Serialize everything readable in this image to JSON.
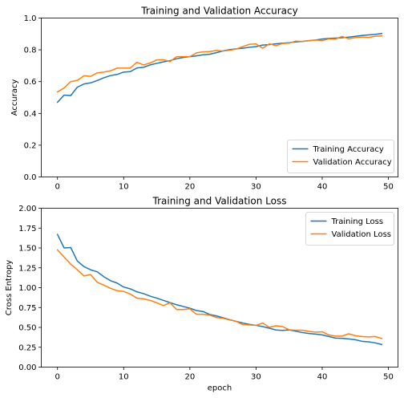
{
  "chart_data": [
    {
      "type": "line",
      "title": "Training and Validation Accuracy",
      "xlabel": "",
      "ylabel": "Accuracy",
      "xlim": [
        -2.45,
        51.45
      ],
      "ylim": [
        0,
        1
      ],
      "xticks": [
        0,
        10,
        20,
        30,
        40,
        50
      ],
      "yticks": [
        0.0,
        0.2,
        0.4,
        0.6,
        0.8,
        1.0
      ],
      "ytick_decimals": 1,
      "grid": false,
      "legend": "lower right",
      "series": [
        {
          "name": "Training Accuracy",
          "color": "#1f77b4",
          "values": [
            0.47,
            0.515,
            0.512,
            0.565,
            0.585,
            0.592,
            0.607,
            0.624,
            0.638,
            0.645,
            0.66,
            0.663,
            0.686,
            0.69,
            0.705,
            0.715,
            0.724,
            0.732,
            0.744,
            0.752,
            0.757,
            0.762,
            0.769,
            0.772,
            0.782,
            0.793,
            0.801,
            0.806,
            0.81,
            0.816,
            0.82,
            0.83,
            0.833,
            0.838,
            0.842,
            0.845,
            0.85,
            0.853,
            0.858,
            0.862,
            0.868,
            0.872,
            0.874,
            0.876,
            0.88,
            0.885,
            0.89,
            0.894,
            0.897,
            0.903
          ]
        },
        {
          "name": "Validation Accuracy",
          "color": "#ff7f0e",
          "values": [
            0.535,
            0.56,
            0.6,
            0.608,
            0.637,
            0.633,
            0.655,
            0.66,
            0.668,
            0.685,
            0.685,
            0.685,
            0.722,
            0.705,
            0.717,
            0.737,
            0.738,
            0.726,
            0.757,
            0.757,
            0.757,
            0.781,
            0.787,
            0.789,
            0.796,
            0.792,
            0.797,
            0.805,
            0.82,
            0.835,
            0.837,
            0.81,
            0.838,
            0.826,
            0.84,
            0.842,
            0.855,
            0.853,
            0.857,
            0.862,
            0.858,
            0.869,
            0.868,
            0.884,
            0.87,
            0.877,
            0.88,
            0.878,
            0.885,
            0.888
          ]
        }
      ]
    },
    {
      "type": "line",
      "title": "Training and Validation Loss",
      "xlabel": "epoch",
      "ylabel": "Cross Entropy",
      "xlim": [
        -2.45,
        51.45
      ],
      "ylim": [
        0,
        2
      ],
      "xticks": [
        0,
        10,
        20,
        30,
        40,
        50
      ],
      "yticks": [
        0.0,
        0.25,
        0.5,
        0.75,
        1.0,
        1.25,
        1.5,
        1.75,
        2.0
      ],
      "ytick_decimals": 2,
      "grid": false,
      "legend": "upper right",
      "series": [
        {
          "name": "Training Loss",
          "color": "#1f77b4",
          "values": [
            1.67,
            1.5,
            1.505,
            1.335,
            1.265,
            1.225,
            1.2,
            1.138,
            1.088,
            1.058,
            1.008,
            0.985,
            0.948,
            0.925,
            0.893,
            0.868,
            0.84,
            0.812,
            0.785,
            0.763,
            0.742,
            0.712,
            0.7,
            0.662,
            0.645,
            0.622,
            0.598,
            0.576,
            0.555,
            0.538,
            0.526,
            0.51,
            0.49,
            0.467,
            0.462,
            0.468,
            0.452,
            0.435,
            0.423,
            0.415,
            0.405,
            0.385,
            0.365,
            0.362,
            0.355,
            0.345,
            0.325,
            0.318,
            0.305,
            0.285
          ]
        },
        {
          "name": "Validation Loss",
          "color": "#ff7f0e",
          "values": [
            1.475,
            1.385,
            1.295,
            1.225,
            1.148,
            1.165,
            1.068,
            1.032,
            0.992,
            0.962,
            0.953,
            0.92,
            0.868,
            0.86,
            0.84,
            0.81,
            0.775,
            0.81,
            0.725,
            0.725,
            0.735,
            0.665,
            0.665,
            0.655,
            0.625,
            0.615,
            0.595,
            0.575,
            0.535,
            0.53,
            0.525,
            0.555,
            0.5,
            0.52,
            0.51,
            0.47,
            0.465,
            0.465,
            0.45,
            0.44,
            0.445,
            0.405,
            0.39,
            0.39,
            0.42,
            0.395,
            0.385,
            0.38,
            0.385,
            0.36
          ]
        }
      ]
    }
  ]
}
